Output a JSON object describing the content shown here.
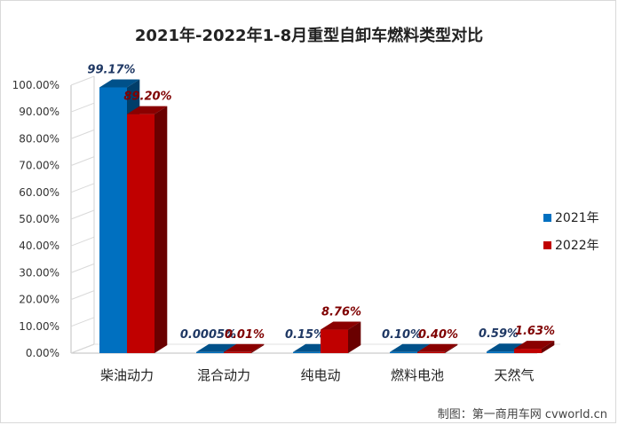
{
  "chart_data": {
    "type": "bar",
    "title": "2021年-2022年1-8月重型自卸车燃料类型对比",
    "categories": [
      "柴油动力",
      "混合动力",
      "纯电动",
      "燃料电池",
      "天然气"
    ],
    "series": [
      {
        "name": "2021年",
        "values": [
          99.17,
          0.0005,
          0.15,
          0.1,
          0.59
        ],
        "labels": [
          "99.17%",
          "0.0005%",
          "0.15%",
          "0.10%",
          "0.59%"
        ],
        "color": "#0070c0",
        "label_color": "#1f3864"
      },
      {
        "name": "2022年",
        "values": [
          89.2,
          0.01,
          8.76,
          0.4,
          1.63
        ],
        "labels": [
          "89.20%",
          "0.01%",
          "8.76%",
          "0.40%",
          "1.63%"
        ],
        "color": "#c00000",
        "label_color": "#7f0000"
      }
    ],
    "yticks": [
      "0.00%",
      "10.00%",
      "20.00%",
      "30.00%",
      "40.00%",
      "50.00%",
      "60.00%",
      "70.00%",
      "80.00%",
      "90.00%",
      "100.00%"
    ],
    "ylim": [
      0,
      100
    ],
    "legend_position": "right",
    "grid": false,
    "style": "3d-bar"
  },
  "credit": "制图：第一商用车网 cvworld.cn"
}
